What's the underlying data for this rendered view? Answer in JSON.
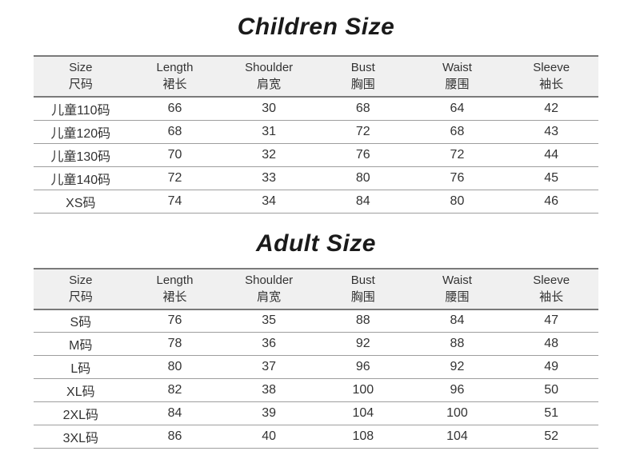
{
  "chart_data": [
    {
      "type": "table",
      "title": "Children Size",
      "columns": [
        {
          "en": "Size",
          "zh": "尺码"
        },
        {
          "en": "Length",
          "zh": "裙长"
        },
        {
          "en": "Shoulder",
          "zh": "肩宽"
        },
        {
          "en": "Bust",
          "zh": "胸围"
        },
        {
          "en": "Waist",
          "zh": "腰围"
        },
        {
          "en": "Sleeve",
          "zh": "袖长"
        }
      ],
      "rows": [
        [
          "儿童110码",
          "66",
          "30",
          "68",
          "64",
          "42"
        ],
        [
          "儿童120码",
          "68",
          "31",
          "72",
          "68",
          "43"
        ],
        [
          "儿童130码",
          "70",
          "32",
          "76",
          "72",
          "44"
        ],
        [
          "儿童140码",
          "72",
          "33",
          "80",
          "76",
          "45"
        ],
        [
          "XS码",
          "74",
          "34",
          "84",
          "80",
          "46"
        ]
      ]
    },
    {
      "type": "table",
      "title": "Adult Size",
      "columns": [
        {
          "en": "Size",
          "zh": "尺码"
        },
        {
          "en": "Length",
          "zh": "裙长"
        },
        {
          "en": "Shoulder",
          "zh": "肩宽"
        },
        {
          "en": "Bust",
          "zh": "胸围"
        },
        {
          "en": "Waist",
          "zh": "腰围"
        },
        {
          "en": "Sleeve",
          "zh": "袖长"
        }
      ],
      "rows": [
        [
          "S码",
          "76",
          "35",
          "88",
          "84",
          "47"
        ],
        [
          "M码",
          "78",
          "36",
          "92",
          "88",
          "48"
        ],
        [
          "L码",
          "80",
          "37",
          "96",
          "92",
          "49"
        ],
        [
          "XL码",
          "82",
          "38",
          "100",
          "96",
          "50"
        ],
        [
          "2XL码",
          "84",
          "39",
          "104",
          "100",
          "51"
        ],
        [
          "3XL码",
          "86",
          "40",
          "108",
          "104",
          "52"
        ]
      ]
    }
  ],
  "colors": {
    "background": "#ffffff",
    "text": "#333333",
    "title": "#1a1a1a",
    "header_bg": "#f0f0f0",
    "header_border": "#7a7a7a",
    "row_border": "#9e9e9e"
  }
}
